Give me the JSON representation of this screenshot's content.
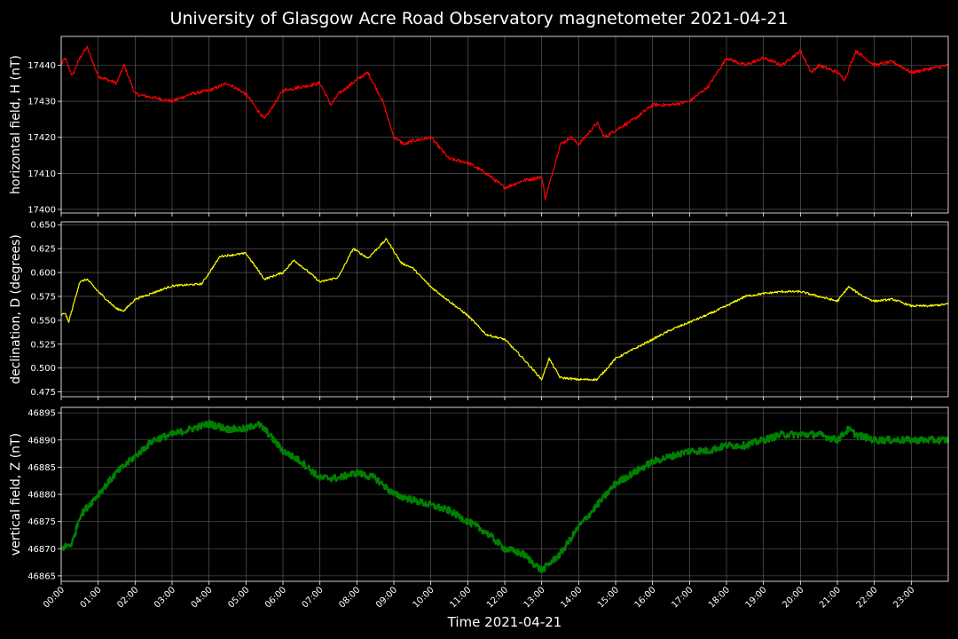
{
  "title": "University of Glasgow Acre Road Observatory magnetometer 2021-04-21",
  "xlabel": "Time 2021-04-21",
  "xticks": [
    "00:00",
    "01:00",
    "02:00",
    "03:00",
    "04:00",
    "05:00",
    "06:00",
    "07:00",
    "08:00",
    "09:00",
    "10:00",
    "11:00",
    "12:00",
    "13:00",
    "14:00",
    "15:00",
    "16:00",
    "17:00",
    "18:00",
    "19:00",
    "20:00",
    "21:00",
    "22:00",
    "23:00"
  ],
  "colors": {
    "H": "#ff0000",
    "D": "#ffff00",
    "Z": "#008000",
    "grid": "#666666",
    "background": "#000000"
  },
  "chart_data": [
    {
      "type": "line",
      "ylabel": "horizontal field, H (nT)",
      "xlim": [
        0,
        24
      ],
      "ylim": [
        17399,
        17448
      ],
      "yticks": [
        17400,
        17410,
        17420,
        17430,
        17440
      ],
      "series": [
        {
          "x": [
            0,
            0.1,
            0.3,
            0.5,
            0.7,
            1.0,
            1.5,
            1.7,
            2.0,
            3.0,
            3.5,
            4.0,
            4.5,
            5.0,
            5.5,
            6.0,
            6.5,
            7.0,
            7.3,
            7.5,
            8.0,
            8.3,
            8.7,
            9.0,
            9.3,
            9.5,
            10.0,
            10.5,
            11.0,
            11.5,
            12.0,
            12.5,
            13.0,
            13.1,
            13.5,
            13.8,
            14.0,
            14.5,
            14.7,
            15.0,
            15.5,
            16.0,
            16.5,
            17.0,
            17.5,
            18.0,
            18.5,
            19.0,
            19.5,
            20.0,
            20.3,
            20.5,
            21.0,
            21.2,
            21.5,
            22.0,
            22.5,
            23.0,
            23.5,
            24.0
          ],
          "y": [
            17440,
            17442,
            17437,
            17442,
            17445,
            17437,
            17435,
            17440,
            17432,
            17430,
            17432,
            17433,
            17435,
            17432,
            17425,
            17433,
            17434,
            17435,
            17429,
            17432,
            17436,
            17438,
            17430,
            17420,
            17418,
            17419,
            17420,
            17414,
            17413,
            17410,
            17406,
            17408,
            17409,
            17403,
            17418,
            17420,
            17418,
            17424,
            17420,
            17422,
            17425,
            17429,
            17429,
            17430,
            17434,
            17442,
            17440,
            17442,
            17440,
            17444,
            17438,
            17440,
            17438,
            17436,
            17444,
            17440,
            17441,
            17438,
            17439,
            17440
          ]
        }
      ]
    },
    {
      "type": "line",
      "ylabel": "declination, D (degrees)",
      "xlim": [
        0,
        24
      ],
      "ylim": [
        0.47,
        0.653
      ],
      "yticks": [
        0.475,
        0.5,
        0.525,
        0.55,
        0.575,
        0.6,
        0.625,
        0.65
      ],
      "series": [
        {
          "x": [
            0,
            0.1,
            0.2,
            0.5,
            0.7,
            1.0,
            1.5,
            1.7,
            2.0,
            3.0,
            3.8,
            4.3,
            5.0,
            5.5,
            6.0,
            6.3,
            6.8,
            7.0,
            7.5,
            7.9,
            8.3,
            8.8,
            9.2,
            9.5,
            10.0,
            10.5,
            11.0,
            11.5,
            12.0,
            12.5,
            13.0,
            13.2,
            13.5,
            14.0,
            14.5,
            15.0,
            15.5,
            16.0,
            16.5,
            17.0,
            17.5,
            18.0,
            18.5,
            19.0,
            19.5,
            20.0,
            20.5,
            21.0,
            21.3,
            21.7,
            22.0,
            22.5,
            23.0,
            23.5,
            24.0
          ],
          "y": [
            0.555,
            0.558,
            0.548,
            0.59,
            0.593,
            0.58,
            0.562,
            0.56,
            0.572,
            0.586,
            0.588,
            0.617,
            0.62,
            0.593,
            0.6,
            0.613,
            0.597,
            0.59,
            0.595,
            0.625,
            0.615,
            0.635,
            0.61,
            0.605,
            0.585,
            0.57,
            0.555,
            0.535,
            0.53,
            0.51,
            0.488,
            0.51,
            0.49,
            0.488,
            0.488,
            0.51,
            0.52,
            0.53,
            0.54,
            0.548,
            0.556,
            0.565,
            0.575,
            0.578,
            0.58,
            0.58,
            0.575,
            0.57,
            0.585,
            0.575,
            0.57,
            0.572,
            0.565,
            0.565,
            0.567
          ]
        }
      ]
    },
    {
      "type": "line",
      "ylabel": "vertical field, Z (nT)",
      "xlim": [
        0,
        24
      ],
      "ylim": [
        46864,
        46896
      ],
      "yticks": [
        46865,
        46870,
        46875,
        46880,
        46885,
        46890,
        46895
      ],
      "series": [
        {
          "x": [
            0,
            0.3,
            0.5,
            1.0,
            1.5,
            2.0,
            2.5,
            3.0,
            3.5,
            4.0,
            4.5,
            5.0,
            5.3,
            5.5,
            6.0,
            6.5,
            7.0,
            7.5,
            8.0,
            8.5,
            9.0,
            9.5,
            10.0,
            10.5,
            11.0,
            11.5,
            12.0,
            12.5,
            13.0,
            13.5,
            14.0,
            14.5,
            15.0,
            15.5,
            16.0,
            16.5,
            17.0,
            17.5,
            18.0,
            18.5,
            19.0,
            19.5,
            20.0,
            20.5,
            21.0,
            21.3,
            21.5,
            22.0,
            22.5,
            23.0,
            23.5,
            24.0
          ],
          "y": [
            46870,
            46871,
            46876,
            46880,
            46884,
            46887,
            46890,
            46891,
            46892,
            46893,
            46892,
            46892,
            46893,
            46892,
            46888,
            46886,
            46883,
            46883,
            46884,
            46883,
            46880,
            46879,
            46878,
            46877,
            46875,
            46873,
            46870,
            46869,
            46866,
            46869,
            46874,
            46878,
            46882,
            46884,
            46886,
            46887,
            46888,
            46888,
            46889,
            46889,
            46890,
            46891,
            46891,
            46891,
            46890,
            46892,
            46891,
            46890,
            46890,
            46890,
            46890,
            46890
          ]
        }
      ]
    }
  ]
}
